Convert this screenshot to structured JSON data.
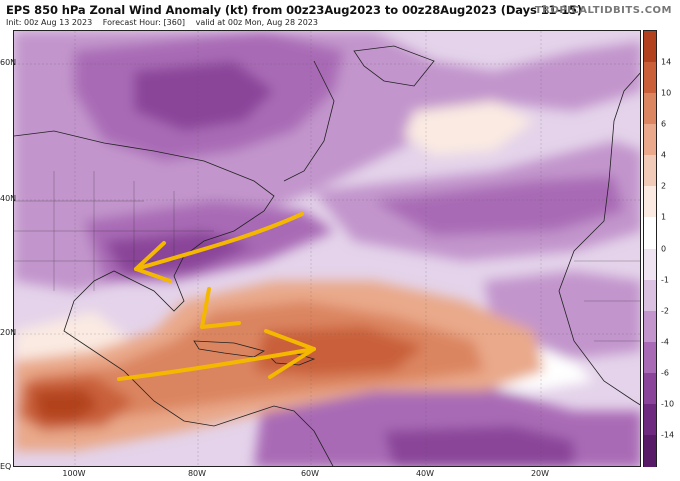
{
  "header": {
    "title": "EPS 850 hPa Zonal Wind Anomaly (kt) from 00z23Aug2023 to 00z28Aug2023 (Days 11-15)",
    "init": "Init: 00z Aug 13 2023",
    "forecast_hour": "Forecast Hour: [360]",
    "valid": "valid at 00z Mon, Aug 28 2023",
    "brand": "TROPICALTIDBITS.COM"
  },
  "map": {
    "lat_labels": [
      "60N",
      "40N",
      "20N",
      "EQ"
    ],
    "lon_labels": [
      "100W",
      "80W",
      "60W",
      "40W",
      "20W"
    ],
    "annotation_color": "#f5b800"
  },
  "colorbar": {
    "labels": [
      "14",
      "10",
      "6",
      "4",
      "2",
      "1",
      "0",
      "-1",
      "-2",
      "-4",
      "-6",
      "-10",
      "-14"
    ],
    "colors": [
      "#b2421f",
      "#c9603a",
      "#db8561",
      "#e9a98a",
      "#f2cbb8",
      "#faeae2",
      "#ffffff",
      "#efe3f2",
      "#dac0e1",
      "#c295cc",
      "#a96ab5",
      "#8a4499",
      "#6e2a7e",
      "#571b67"
    ]
  }
}
